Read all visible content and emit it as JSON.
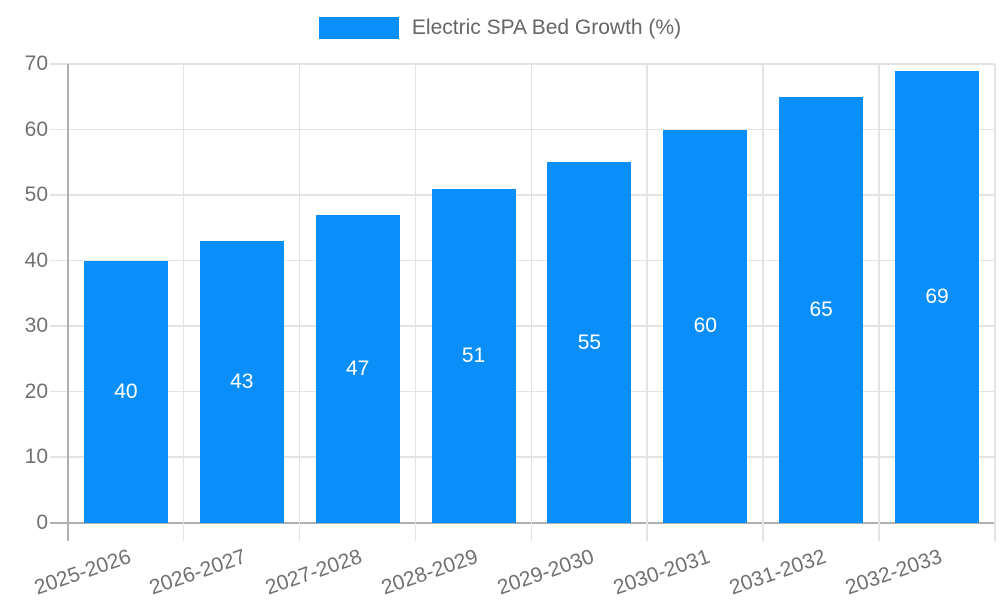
{
  "legend": {
    "label": "Electric SPA Bed Growth (%)"
  },
  "colors": {
    "bar": "#0a8ef9",
    "grid": "#e3e3e3",
    "axis": "#b0b0b0",
    "tick_text": "#717171",
    "legend_text": "#666666",
    "value_label": "#ffffff"
  },
  "chart_data": {
    "type": "bar",
    "title": "",
    "categories": [
      "2025-2026",
      "2026-2027",
      "2027-2028",
      "2028-2029",
      "2029-2030",
      "2030-2031",
      "2031-2032",
      "2032-2033"
    ],
    "values": [
      40,
      43,
      47,
      51,
      55,
      60,
      65,
      69
    ],
    "series_name": "Electric SPA Bed Growth (%)",
    "xlabel": "",
    "ylabel": "",
    "ylim": [
      0,
      70
    ],
    "yticks": [
      0,
      10,
      20,
      30,
      40,
      50,
      60,
      70
    ],
    "grid": true,
    "legend_position": "top",
    "bar_labels_inside": true,
    "x_label_rotation_deg": -19
  }
}
